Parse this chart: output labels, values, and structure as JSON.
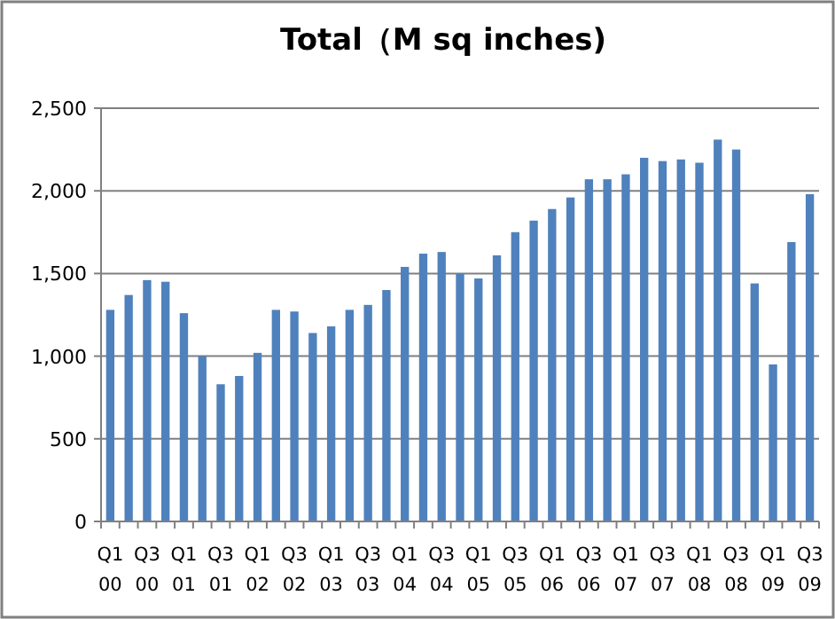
{
  "chart_data": {
    "type": "bar",
    "title": "Total（M sq inches)",
    "categories": [
      "Q1\n00",
      null,
      "Q3\n00",
      null,
      "Q1\n01",
      null,
      "Q3\n01",
      null,
      "Q1\n02",
      null,
      "Q3\n02",
      null,
      "Q1\n03",
      null,
      "Q3\n03",
      null,
      "Q1\n04",
      null,
      "Q3\n04",
      null,
      "Q1\n05",
      null,
      "Q3\n05",
      null,
      "Q1\n06",
      null,
      "Q3\n06",
      null,
      "Q1\n07",
      null,
      "Q3\n07",
      null,
      "Q1\n08",
      null,
      "Q3\n08",
      null,
      "Q1\n09",
      null,
      "Q3\n09"
    ],
    "values": [
      1280,
      1370,
      1460,
      1450,
      1260,
      1000,
      830,
      880,
      1020,
      1280,
      1270,
      1140,
      1180,
      1280,
      1310,
      1400,
      1540,
      1620,
      1630,
      1500,
      1470,
      1610,
      1750,
      1820,
      1890,
      1960,
      2070,
      2070,
      2100,
      2200,
      2180,
      2190,
      2170,
      2310,
      2250,
      1440,
      950,
      1690,
      1980
    ],
    "color": "#4f81bd",
    "ylim": [
      0,
      2500
    ],
    "yticks": [
      {
        "value": 0,
        "label": "0"
      },
      {
        "value": 500,
        "label": "500"
      },
      {
        "value": 1000,
        "label": "1,000"
      },
      {
        "value": 1500,
        "label": "1,500"
      },
      {
        "value": 2000,
        "label": "2,000"
      },
      {
        "value": 2500,
        "label": "2,500"
      }
    ],
    "grid": "y"
  }
}
